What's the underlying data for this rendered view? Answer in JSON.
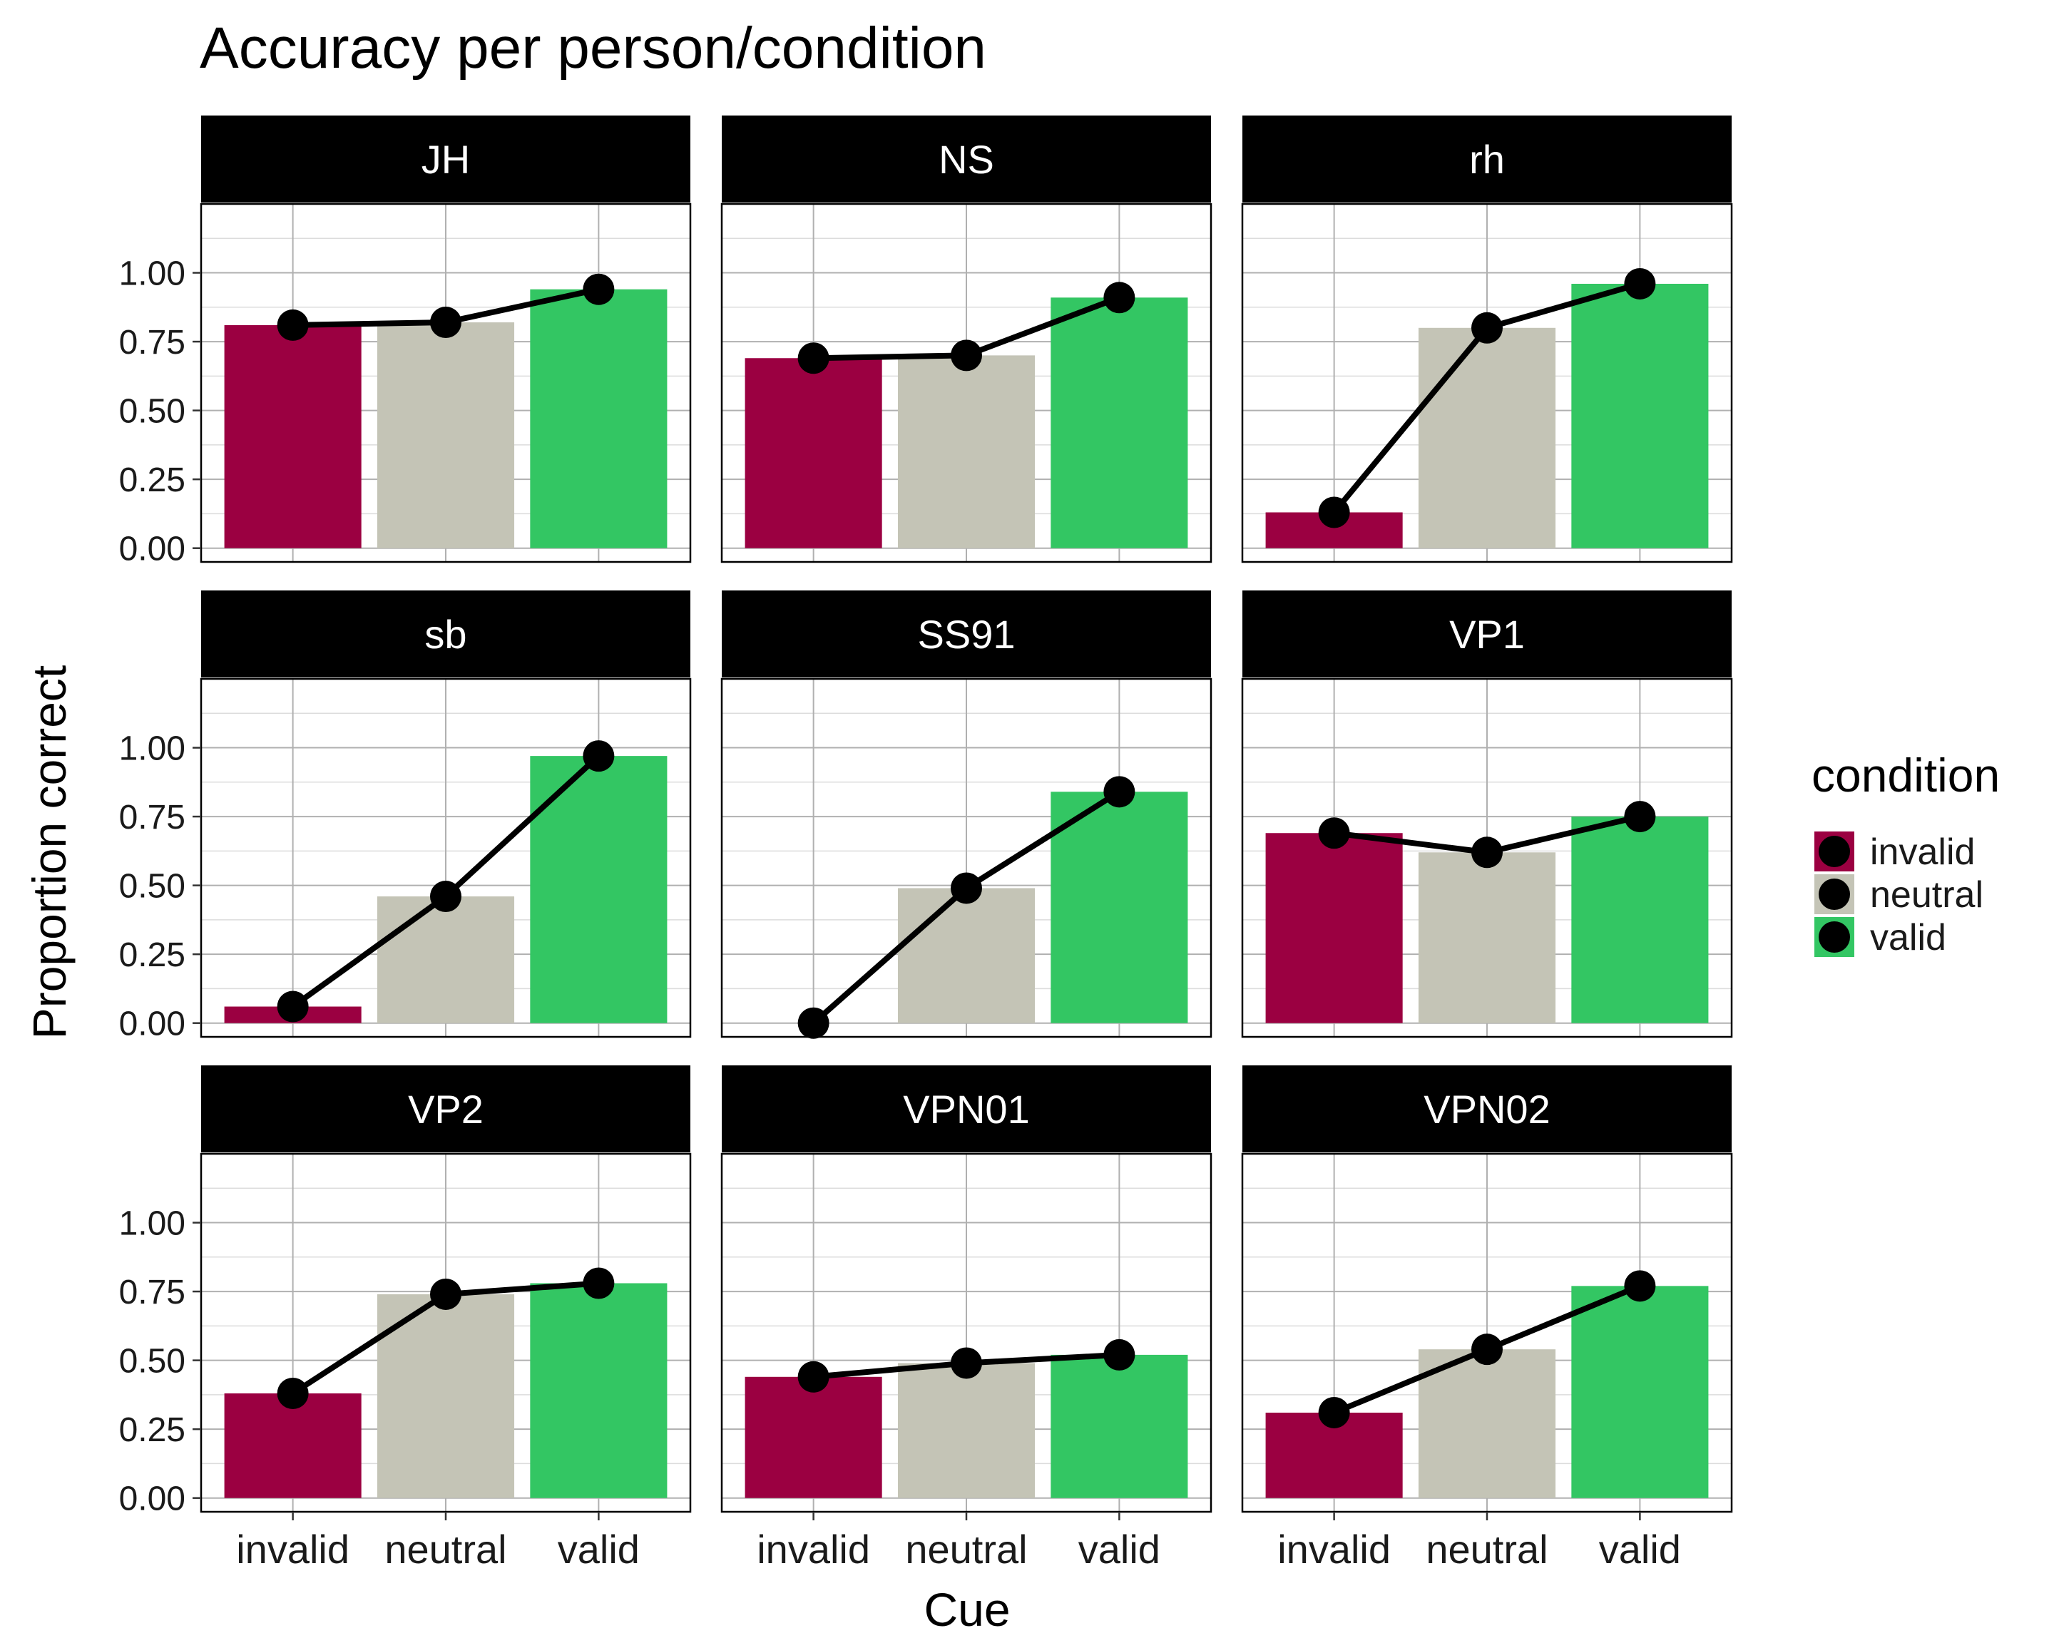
{
  "chart_data": {
    "type": "bar",
    "title": "Accuracy per person/condition",
    "xlabel": "Cue",
    "ylabel": "Proportion correct",
    "categories": [
      "invalid",
      "neutral",
      "valid"
    ],
    "yticks": [
      "0.00",
      "0.25",
      "0.50",
      "0.75",
      "1.00"
    ],
    "ylim": [
      -0.05,
      1.25
    ],
    "grid": true,
    "legend": {
      "title": "condition",
      "position": "right",
      "entries": [
        "invalid",
        "neutral",
        "valid"
      ]
    },
    "colors": {
      "invalid": "#9b0041",
      "neutral": "#c4c4b6",
      "valid": "#33c663",
      "points": "#000000",
      "strip": "#000000",
      "strip_text": "#ffffff"
    },
    "panels": [
      {
        "name": "JH",
        "values": [
          0.81,
          0.82,
          0.94
        ]
      },
      {
        "name": "NS",
        "values": [
          0.69,
          0.7,
          0.91
        ]
      },
      {
        "name": "rh",
        "values": [
          0.13,
          0.8,
          0.96
        ]
      },
      {
        "name": "sb",
        "values": [
          0.06,
          0.46,
          0.97
        ]
      },
      {
        "name": "SS91",
        "values": [
          0.0,
          0.49,
          0.84
        ]
      },
      {
        "name": "VP1",
        "values": [
          0.69,
          0.62,
          0.75
        ]
      },
      {
        "name": "VP2",
        "values": [
          0.38,
          0.74,
          0.78
        ]
      },
      {
        "name": "VPN01",
        "values": [
          0.44,
          0.49,
          0.52
        ]
      },
      {
        "name": "VPN02",
        "values": [
          0.31,
          0.54,
          0.77
        ]
      }
    ]
  }
}
